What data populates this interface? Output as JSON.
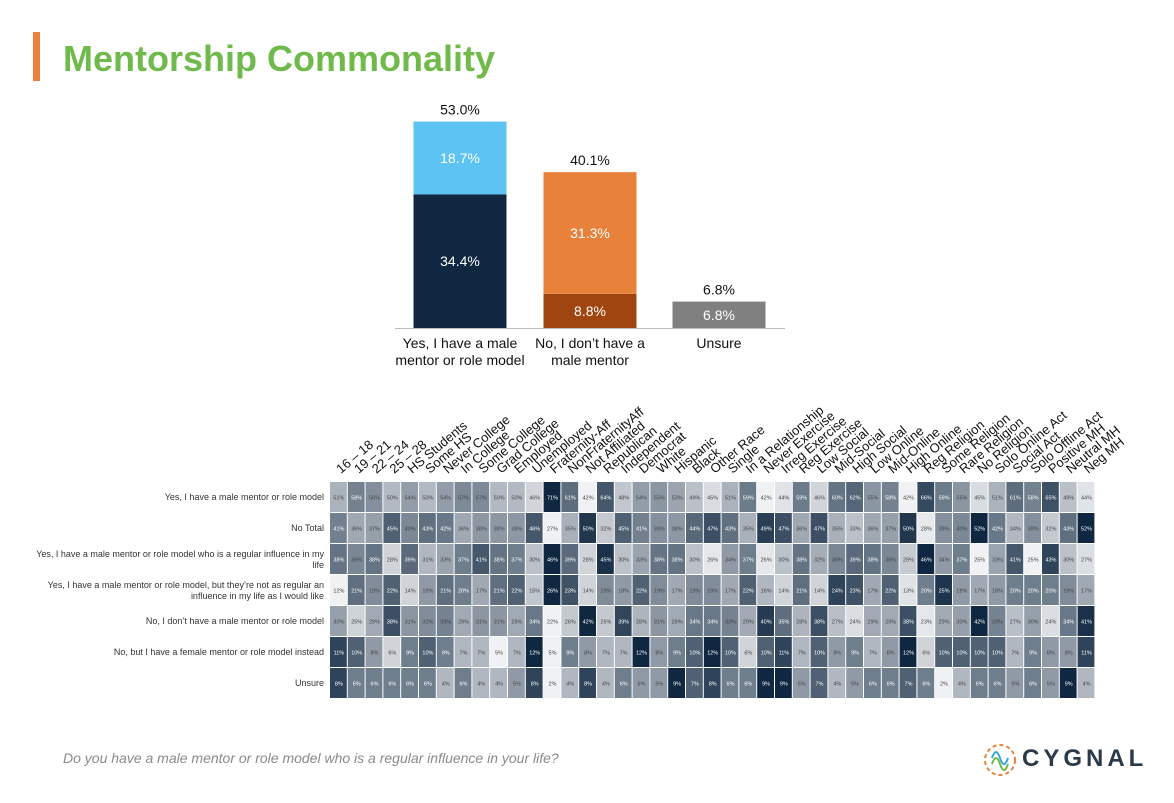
{
  "page": {
    "title": "Mentorship Commonality",
    "question": "Do you have a male mentor or role model who is a regular influence in your life?",
    "logo_text": "CYGNAL"
  },
  "colors": {
    "accent": "#e8813a",
    "title": "#6fba4b",
    "yes_regular": "#0f2740",
    "yes_not_regular": "#5cc3f2",
    "no_total": "#e8813a",
    "no_female": "#a04410",
    "unsure": "#808080"
  },
  "chart_data": [
    {
      "type": "bar",
      "stacked": true,
      "categories": [
        "Yes, I have a male mentor or role model",
        "No, I don’t have a male mentor",
        "Unsure"
      ],
      "totals": [
        "53.0%",
        "40.1%",
        "6.8%"
      ],
      "series": [
        {
          "values": [
            34.4,
            8.8,
            6.8
          ],
          "labels": [
            "34.4%",
            "8.8%",
            "6.8%"
          ]
        },
        {
          "values": [
            18.7,
            31.3,
            0
          ],
          "labels": [
            "18.7%",
            "31.3%",
            ""
          ]
        }
      ],
      "ylim": [
        0,
        60
      ]
    },
    {
      "type": "heatmap",
      "columns": [
        "16 – 18",
        "19 – 21",
        "22 – 24",
        "25 – 28",
        "HS Students",
        "Some HS",
        "Never College",
        "In College",
        "Some College",
        "Grad College",
        "Employed",
        "Unemployed",
        "Fraternity-Aff",
        "NonFraternityAff",
        "Not Affiliated",
        "Republican",
        "Independent",
        "Democrat",
        "White",
        "Hispanic",
        "Black",
        "Other Race",
        "Single",
        "In a Relationship",
        "Never Exercise",
        "Irreg Exercise",
        "Reg Exercise",
        "Low Social",
        "Mid-Social",
        "High Social",
        "Low Online",
        "Mid-Online",
        "High Online",
        "Reg Religion",
        "Some Religion",
        "Rare Religion",
        "No Religion",
        "Solo Online Act",
        "Social Act",
        "Solo Offline Act",
        "Positive MH",
        "Neutral MH",
        "Neg MH"
      ],
      "rows": [
        {
          "label": "Yes, I have a male mentor or role model",
          "values": [
            51,
            58,
            56,
            50,
            54,
            50,
            54,
            57,
            57,
            50,
            50,
            46,
            71,
            61,
            42,
            64,
            48,
            54,
            55,
            53,
            49,
            45,
            51,
            59,
            42,
            44,
            59,
            46,
            60,
            62,
            55,
            58,
            42,
            66,
            59,
            55,
            45,
            51,
            61,
            58,
            65,
            49,
            44
          ]
        },
        {
          "label": "No Total",
          "values": [
            41,
            36,
            37,
            45,
            40,
            43,
            42,
            36,
            38,
            38,
            38,
            46,
            27,
            35,
            50,
            32,
            45,
            41,
            39,
            38,
            44,
            47,
            43,
            35,
            49,
            47,
            36,
            47,
            35,
            33,
            36,
            37,
            50,
            28,
            39,
            40,
            52,
            42,
            34,
            39,
            32,
            43,
            52
          ]
        },
        {
          "label": "Yes, I have a male mentor or role model who is a regular influence in my life",
          "values": [
            38,
            36,
            38,
            28,
            39,
            31,
            33,
            37,
            41,
            38,
            37,
            30,
            46,
            39,
            28,
            45,
            30,
            33,
            38,
            38,
            30,
            26,
            34,
            37,
            26,
            30,
            38,
            32,
            36,
            39,
            38,
            36,
            29,
            46,
            34,
            37,
            25,
            33,
            41,
            25,
            43,
            30,
            27
          ]
        },
        {
          "label": "Yes, I have a male mentor or role model, but they’re not as regular an influence in my life as I would like",
          "values": [
            12,
            21,
            19,
            22,
            14,
            18,
            21,
            20,
            17,
            21,
            22,
            15,
            26,
            23,
            14,
            19,
            18,
            22,
            19,
            17,
            19,
            19,
            17,
            22,
            16,
            14,
            21,
            14,
            24,
            23,
            17,
            22,
            13,
            20,
            25,
            18,
            17,
            18,
            20,
            20,
            20,
            19,
            17
          ]
        },
        {
          "label": "No, I don’t have a male mentor or role model",
          "values": [
            30,
            25,
            29,
            38,
            31,
            32,
            33,
            29,
            31,
            31,
            29,
            34,
            22,
            26,
            42,
            26,
            39,
            28,
            31,
            29,
            34,
            34,
            33,
            29,
            40,
            35,
            28,
            38,
            27,
            24,
            29,
            29,
            38,
            23,
            29,
            30,
            42,
            33,
            27,
            30,
            24,
            34,
            41
          ]
        },
        {
          "label": "No, but I have a female mentor or role model instead",
          "values": [
            11,
            10,
            8,
            6,
            9,
            10,
            9,
            7,
            7,
            5,
            7,
            12,
            5,
            9,
            8,
            7,
            7,
            12,
            8,
            9,
            10,
            12,
            10,
            6,
            10,
            11,
            7,
            10,
            8,
            9,
            7,
            8,
            12,
            6,
            10,
            10,
            10,
            10,
            7,
            9,
            8,
            8,
            11
          ]
        },
        {
          "label": "Unsure",
          "values": [
            8,
            6,
            6,
            6,
            6,
            6,
            4,
            6,
            4,
            4,
            5,
            8,
            2,
            4,
            8,
            4,
            6,
            5,
            5,
            9,
            7,
            8,
            6,
            6,
            9,
            9,
            5,
            7,
            4,
            5,
            6,
            6,
            7,
            6,
            2,
            4,
            6,
            6,
            5,
            6,
            5,
            9,
            4
          ]
        }
      ]
    }
  ]
}
